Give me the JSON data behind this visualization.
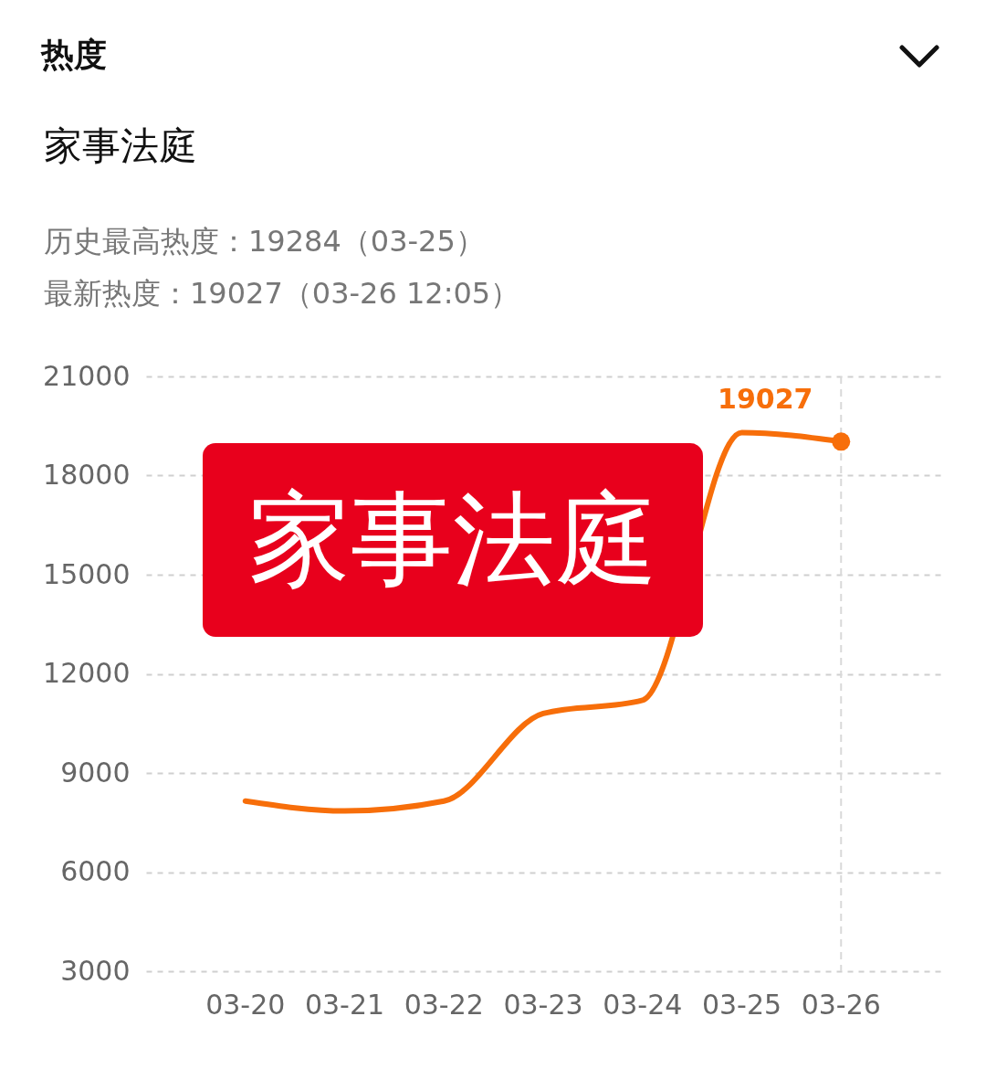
{
  "chart_data": {
    "type": "line",
    "title": "家事法庭",
    "subtitle": "历史最高热度：19284（03-25）",
    "annotations": [
      "热度",
      "家事法庭",
      "最新热度：19027（03-26 12:05）"
    ],
    "categories": [
      "03-20",
      "03-21",
      "03-22",
      "03-23",
      "03-24",
      "03-25",
      "03-26"
    ],
    "series": [
      {
        "color": "#f76e0a",
        "values": [
          8150,
          7850,
          8150,
          10800,
          11200,
          19300,
          19027
        ],
        "value_labels": [
          null,
          null,
          null,
          null,
          null,
          null,
          "19027"
        ]
      }
    ],
    "ylim": [
      3000,
      21000
    ],
    "yticks": [
      3000,
      6000,
      9000,
      12000,
      15000,
      18000,
      21000
    ],
    "grid": "y",
    "marker": "none",
    "line_style": "solid",
    "ref_lines": [
      {
        "axis": "x",
        "value": "03-26",
        "color": "#d9d9d9",
        "line_style": "dashed"
      }
    ]
  }
}
